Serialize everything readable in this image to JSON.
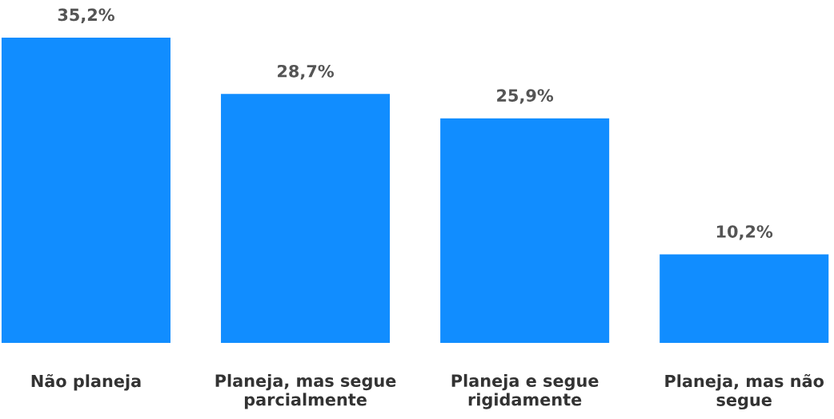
{
  "chart_data": {
    "type": "bar",
    "categories": [
      "Não planeja",
      "Planeja, mas segue parcialmente",
      "Planeja e segue rigidamente",
      "Planeja, mas não segue"
    ],
    "values": [
      35.2,
      28.7,
      25.9,
      10.2
    ],
    "value_labels": [
      "35,2%",
      "28,7%",
      "25,9%",
      "10,2%"
    ],
    "color": "#118dff",
    "grid": false,
    "legend": false
  }
}
